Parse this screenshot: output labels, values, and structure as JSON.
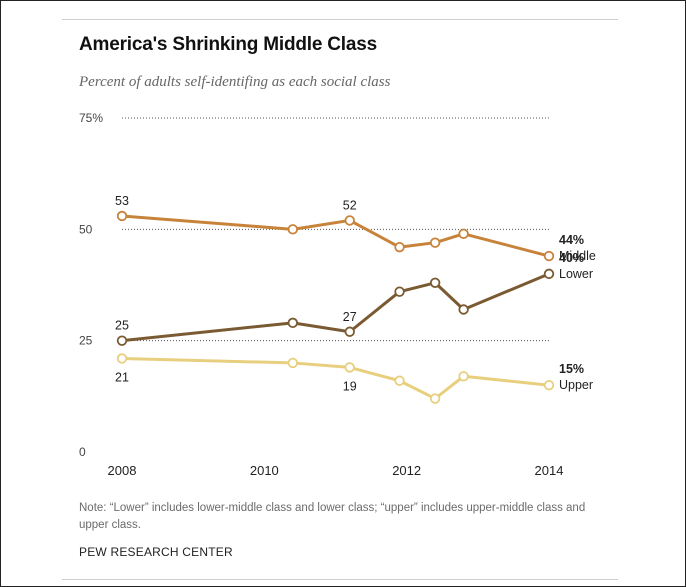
{
  "header": {
    "title": "America's Shrinking Middle Class",
    "subtitle": "Percent of adults self-identifing as each social class"
  },
  "footer": {
    "note": "Note: “Lower” includes lower-middle class and lower class; “upper” includes upper-middle class and upper class.",
    "source": "PEW RESEARCH CENTER"
  },
  "colors": {
    "middle": "#c8833a",
    "lower": "#7a5a32",
    "upper": "#e8cf7e",
    "grid": "#555555"
  },
  "chart_data": {
    "type": "line",
    "title": "America's Shrinking Middle Class",
    "subtitle": "Percent of adults self-identifing as each social class",
    "xlim": [
      2008,
      2014
    ],
    "ylim": [
      0,
      75
    ],
    "y_ticks": [
      0,
      25,
      50,
      75
    ],
    "y_tick_labels": [
      "0",
      "25",
      "50",
      "75%"
    ],
    "x_ticks": [
      2008,
      2010,
      2012,
      2014
    ],
    "x_tick_labels": [
      "2008",
      "2010",
      "2012",
      "2014"
    ],
    "grid": "dotted horizontal at 25, 50, 75",
    "series": [
      {
        "name": "Middle",
        "color": "#c8833a",
        "x": [
          2008.0,
          2010.4,
          2011.2,
          2011.9,
          2012.4,
          2012.8,
          2014.0
        ],
        "y": [
          53,
          50,
          52,
          46,
          47,
          49,
          44
        ],
        "labels": [
          {
            "index": 0,
            "text": "53",
            "position": "above"
          },
          {
            "index": 2,
            "text": "52",
            "position": "above"
          }
        ],
        "end_value": "44%",
        "end_name": "Middle"
      },
      {
        "name": "Lower",
        "color": "#7a5a32",
        "x": [
          2008.0,
          2010.4,
          2011.2,
          2011.9,
          2012.4,
          2012.8,
          2014.0
        ],
        "y": [
          25,
          29,
          27,
          36,
          38,
          32,
          40
        ],
        "labels": [
          {
            "index": 0,
            "text": "25",
            "position": "above"
          },
          {
            "index": 2,
            "text": "27",
            "position": "above"
          }
        ],
        "end_value": "40%",
        "end_name": "Lower"
      },
      {
        "name": "Upper",
        "color": "#e8cf7e",
        "x": [
          2008.0,
          2010.4,
          2011.2,
          2011.9,
          2012.4,
          2012.8,
          2014.0
        ],
        "y": [
          21,
          20,
          19,
          16,
          12,
          17,
          15
        ],
        "labels": [
          {
            "index": 0,
            "text": "21",
            "position": "below"
          },
          {
            "index": 2,
            "text": "19",
            "position": "below"
          }
        ],
        "end_value": "15%",
        "end_name": "Upper"
      }
    ]
  }
}
